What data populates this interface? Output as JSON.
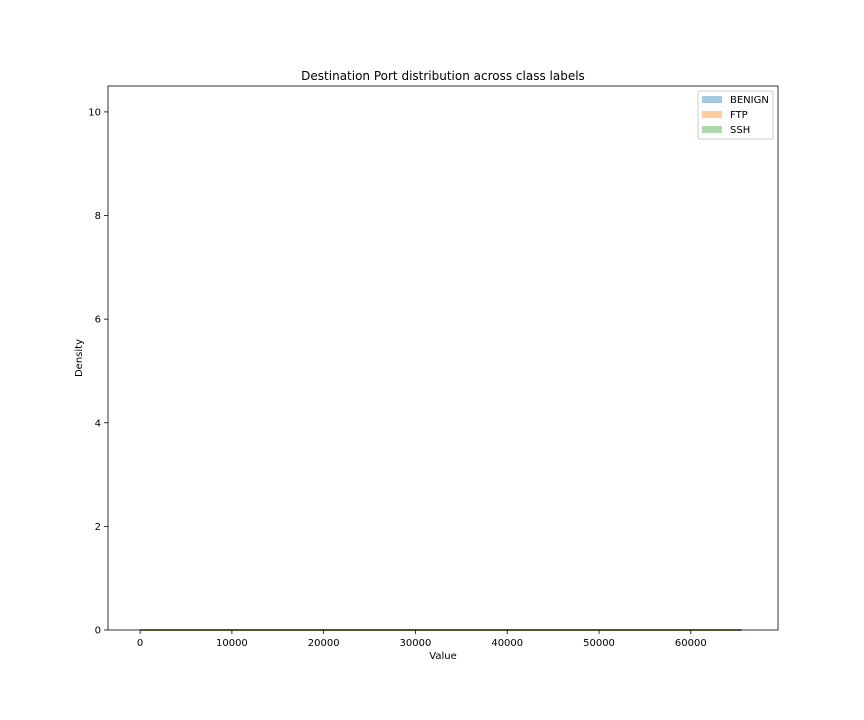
{
  "chart_data": {
    "type": "area",
    "title": "Destination Port distribution across class labels",
    "xlabel": "Value",
    "ylabel": "Density",
    "xlim": [
      -3500,
      69500
    ],
    "ylim": [
      0,
      10.5
    ],
    "x_ticks": [
      0,
      10000,
      20000,
      30000,
      40000,
      50000,
      60000
    ],
    "x_tick_labels": [
      "0",
      "10000",
      "20000",
      "30000",
      "40000",
      "50000",
      "60000"
    ],
    "y_ticks": [
      0,
      2,
      4,
      6,
      8,
      10
    ],
    "y_tick_labels": [
      "0",
      "2",
      "4",
      "6",
      "8",
      "10"
    ],
    "grid": false,
    "legend_position": "top-right",
    "series": [
      {
        "name": "BENIGN",
        "color": "#1f77b4",
        "x": [
          0,
          65535
        ],
        "values": [
          0,
          0
        ]
      },
      {
        "name": "FTP",
        "color": "#ff7f0e",
        "x": [
          0,
          65535
        ],
        "values": [
          0,
          0
        ]
      },
      {
        "name": "SSH",
        "color": "#2ca02c",
        "x": [
          0,
          65535
        ],
        "values": [
          0,
          0
        ]
      }
    ]
  }
}
